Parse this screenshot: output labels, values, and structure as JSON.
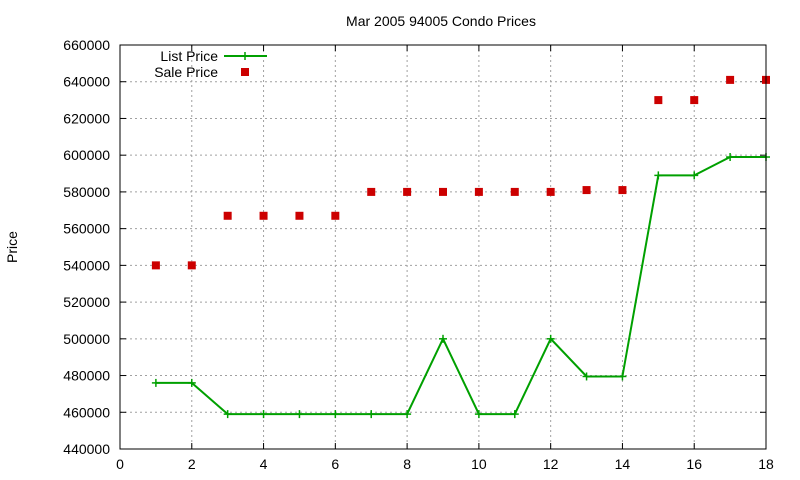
{
  "chart_data": {
    "type": "line",
    "title": "Mar 2005 94005 Condo Prices",
    "xlabel": "",
    "ylabel": "Price",
    "xlim": [
      0,
      18
    ],
    "ylim": [
      440000,
      660000
    ],
    "x_ticks": [
      "0",
      "2",
      "4",
      "6",
      "8",
      "10",
      "12",
      "14",
      "16",
      "18"
    ],
    "y_ticks": [
      "440000",
      "460000",
      "480000",
      "500000",
      "520000",
      "540000",
      "560000",
      "580000",
      "600000",
      "620000",
      "640000",
      "660000"
    ],
    "grid": true,
    "legend_position": "top-left",
    "series": [
      {
        "name": "List Price",
        "style": "line-with-plus-markers",
        "color": "#00a000",
        "x": [
          1,
          2,
          3,
          4,
          5,
          6,
          7,
          8,
          9,
          10,
          11,
          12,
          13,
          14,
          15,
          16,
          17,
          18
        ],
        "values": [
          476000,
          476000,
          459000,
          459000,
          459000,
          459000,
          459000,
          459000,
          500000,
          459000,
          459000,
          500000,
          479500,
          479500,
          589000,
          589000,
          599000,
          599000
        ]
      },
      {
        "name": "Sale Price",
        "style": "square-points",
        "color": "#cc0000",
        "x": [
          1,
          2,
          3,
          4,
          5,
          6,
          7,
          8,
          9,
          10,
          11,
          12,
          13,
          14,
          15,
          16,
          17,
          18
        ],
        "values": [
          540000,
          540000,
          567000,
          567000,
          567000,
          567000,
          580000,
          580000,
          580000,
          580000,
          580000,
          580000,
          581000,
          581000,
          630000,
          630000,
          641000,
          641000
        ]
      }
    ]
  }
}
